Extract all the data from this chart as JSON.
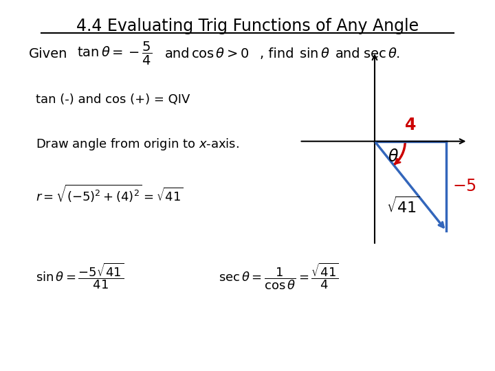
{
  "title": "4.4 Evaluating Trig Functions of Any Angle",
  "background_color": "#ffffff",
  "title_fontsize": 17,
  "text_color": "#000000",
  "red_color": "#cc0000",
  "blue_color": "#3366bb"
}
